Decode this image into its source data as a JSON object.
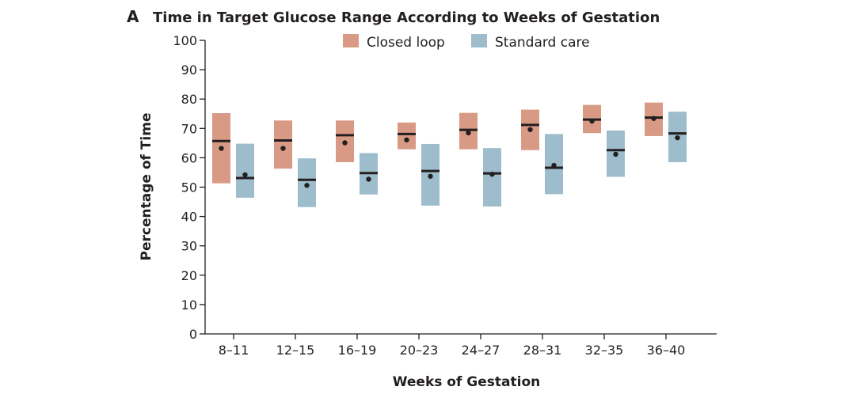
{
  "chart_data": {
    "type": "box",
    "panel_label": "A",
    "title": "Time in Target Glucose Range According to Weeks of Gestation",
    "xlabel": "Weeks of Gestation",
    "ylabel": "Percentage of Time",
    "ylim": [
      0,
      100
    ],
    "yticks": [
      0,
      10,
      20,
      30,
      40,
      50,
      60,
      70,
      80,
      90,
      100
    ],
    "grid": false,
    "legend_position": "top-center",
    "categories": [
      "8–11",
      "12–15",
      "16–19",
      "20–23",
      "24–27",
      "28–31",
      "32–35",
      "36–40"
    ],
    "series": [
      {
        "name": "Closed loop",
        "color": "#d99a85",
        "upper": [
          75.2,
          72.7,
          72.7,
          72.0,
          75.3,
          76.4,
          78.0,
          78.8
        ],
        "median": [
          65.7,
          65.9,
          67.7,
          68.1,
          69.5,
          71.2,
          73.0,
          73.7
        ],
        "mean": [
          63.2,
          63.2,
          65.1,
          66.1,
          68.5,
          69.6,
          72.5,
          73.4
        ],
        "lower": [
          51.3,
          56.3,
          58.5,
          62.9,
          62.9,
          62.6,
          68.4,
          67.4
        ]
      },
      {
        "name": "Standard care",
        "color": "#9ebdcc",
        "upper": [
          64.8,
          59.8,
          61.6,
          64.7,
          63.3,
          68.1,
          69.3,
          75.7
        ],
        "median": [
          53.1,
          52.5,
          54.8,
          55.5,
          54.7,
          56.6,
          62.6,
          68.3
        ],
        "mean": [
          54.2,
          50.6,
          52.7,
          53.7,
          54.4,
          57.4,
          61.2,
          66.8
        ],
        "lower": [
          46.4,
          43.2,
          47.5,
          43.7,
          43.4,
          47.6,
          53.5,
          58.5
        ]
      }
    ]
  }
}
